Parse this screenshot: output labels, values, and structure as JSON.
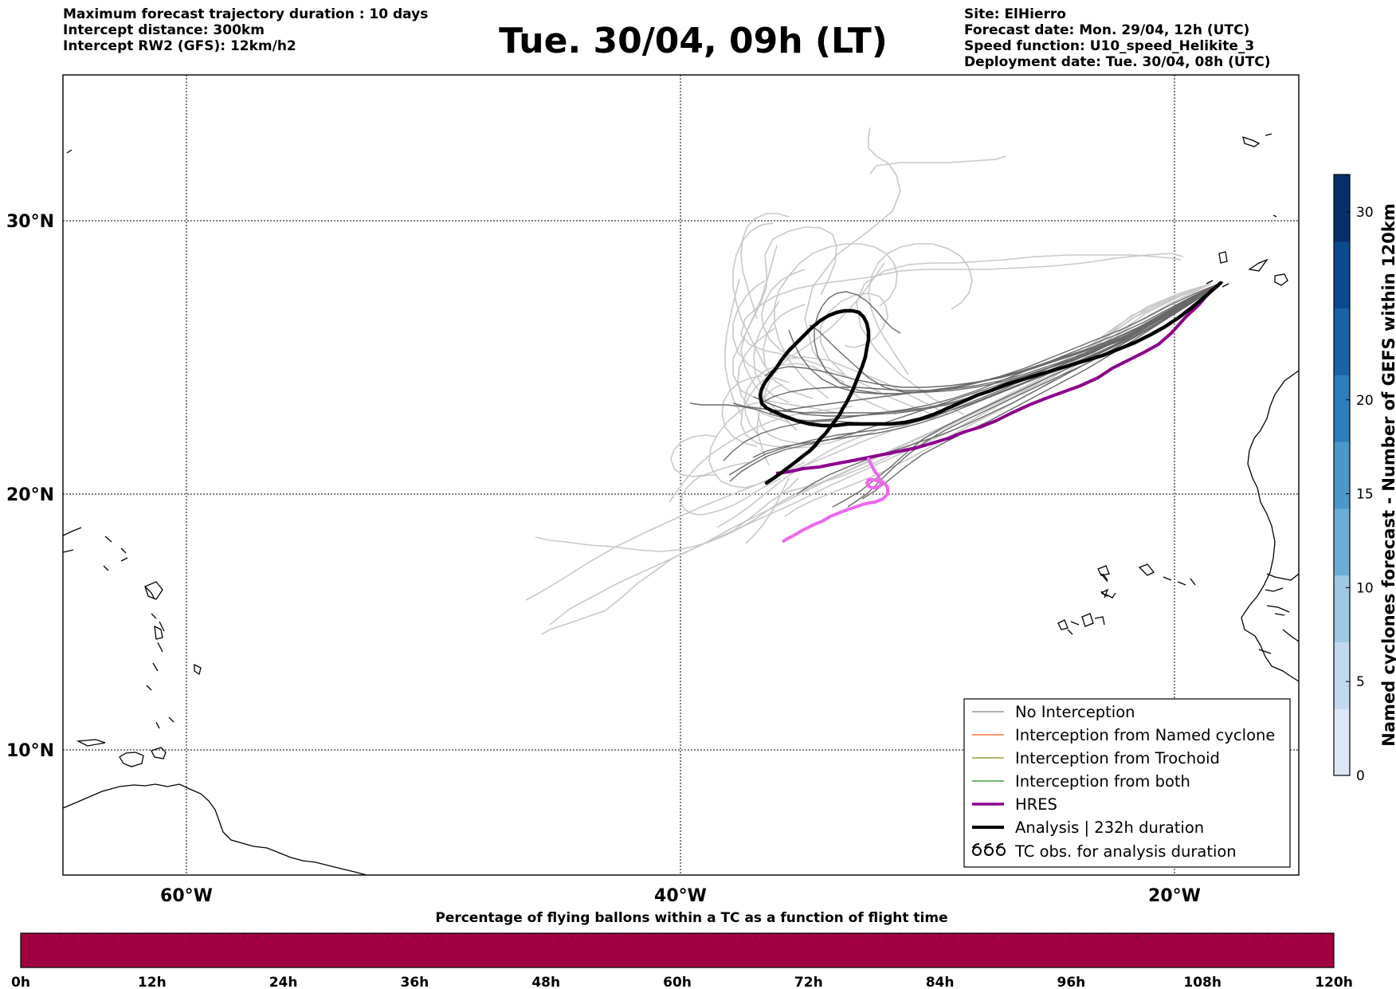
{
  "header": {
    "left": [
      "Maximum forecast trajectory duration : 10 days",
      "Intercept distance: 300km",
      "Intercept RW2 (GFS):  12km/h2"
    ],
    "title": "Tue. 30/04, 09h (LT)",
    "right": [
      "Site: ElHierro",
      "Forecast date: Mon. 29/04, 12h (UTC)",
      "Speed function: U10_speed_Helikite_3",
      "Deployment date: Tue. 30/04, 08h (UTC)"
    ]
  },
  "map": {
    "lat_labels": [
      "30°N",
      "20°N",
      "10°N"
    ],
    "lon_labels": [
      "60°W",
      "40°W",
      "20°W"
    ],
    "extent": {
      "lon": [
        -65,
        -15
      ],
      "lat": [
        4.6,
        33.9
      ]
    },
    "site": {
      "name": "ElHierro",
      "lon": -18,
      "lat": 27.6
    }
  },
  "legend": {
    "items": [
      {
        "label": "No Interception",
        "color": "#808080"
      },
      {
        "label": "Interception from Named cyclone",
        "color": "#ff5a1e"
      },
      {
        "label": "Interception from Trochoid",
        "color": "#7a8a1e"
      },
      {
        "label": "Interception from both",
        "color": "#1e8a1e"
      },
      {
        "label": "HRES",
        "color": "#8b008b"
      },
      {
        "label": "Analysis | 232h duration",
        "color": "#000000"
      },
      {
        "label": "TC obs. for analysis duration",
        "color": "#000000"
      }
    ]
  },
  "colorbar_right": {
    "label": "Named cyclones forecast - Number of GEFS within 120km",
    "ticks": [
      "0",
      "5",
      "10",
      "15",
      "20",
      "30"
    ],
    "tick_values": [
      0,
      5,
      10,
      15,
      20,
      30
    ],
    "max": 32,
    "colors": [
      "#dbe7f5",
      "#c1d8ee",
      "#9fc8e4",
      "#6aaed6",
      "#4a97c9",
      "#2d7dbb",
      "#1a63a8",
      "#0b4a8f",
      "#08306b"
    ]
  },
  "colorbar_bottom": {
    "title": "Percentage of flying ballons within a TC as a function of flight time",
    "ticks": [
      "0h",
      "12h",
      "24h",
      "36h",
      "48h",
      "60h",
      "72h",
      "84h",
      "96h",
      "108h",
      "120h"
    ],
    "color": "#a0003f"
  },
  "colors": {
    "gefs": "#c8c8c8",
    "gefs_dark": "#696969",
    "hres": "#8b008b",
    "hres_early": "#ee66ee",
    "analysis": "#000000"
  }
}
